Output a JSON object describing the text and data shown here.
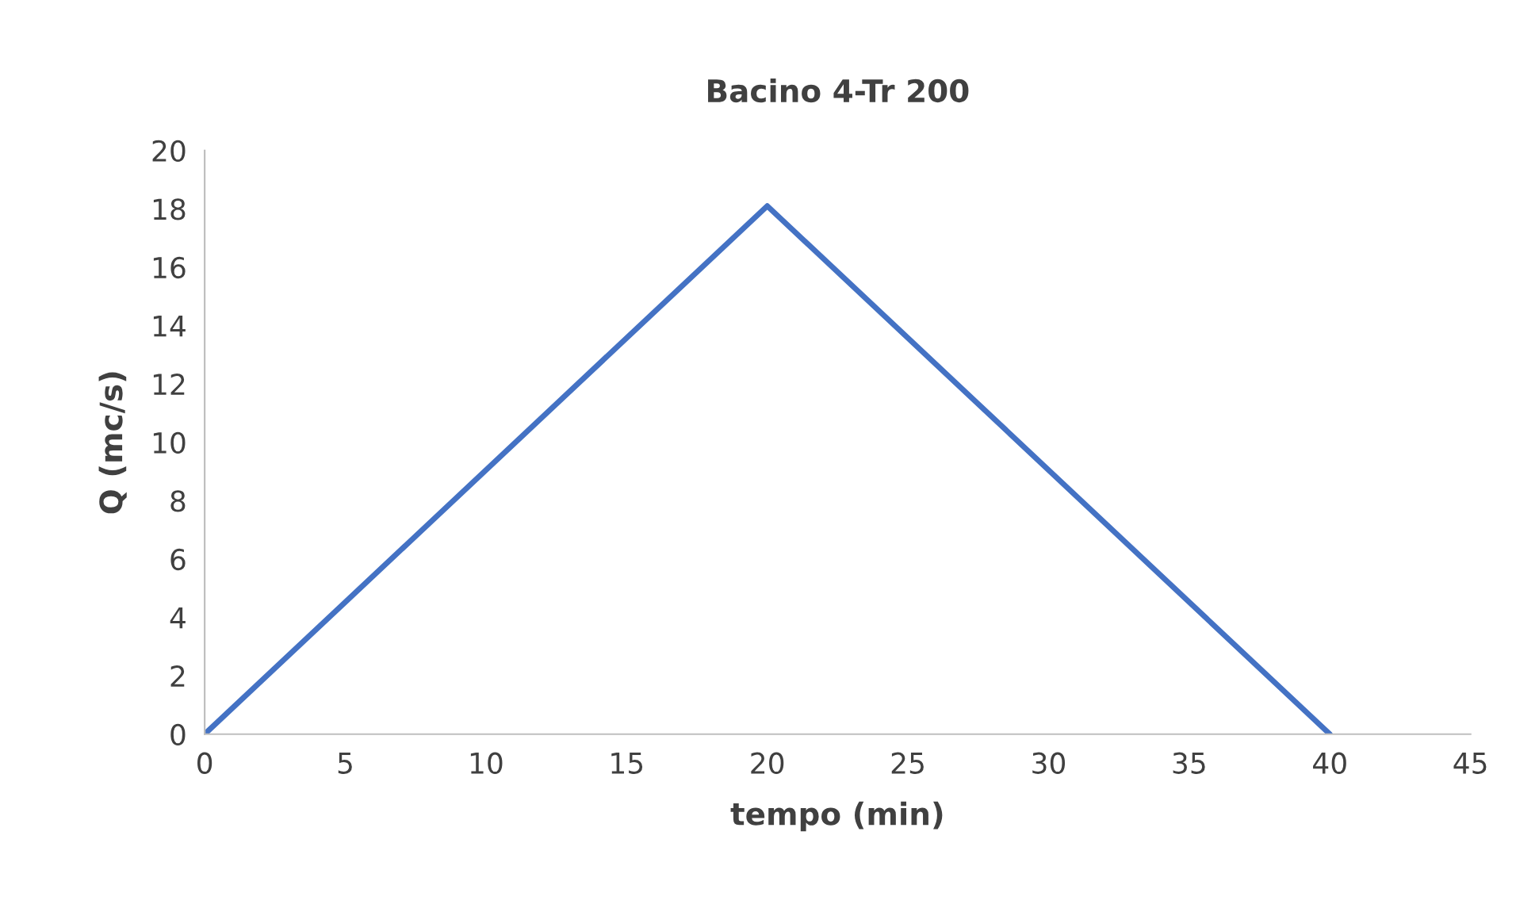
{
  "chart_data": {
    "type": "line",
    "title": "Bacino 4-Tr 200",
    "xlabel": "tempo (min)",
    "ylabel": "Q (mc/s)",
    "x": [
      0,
      20,
      40
    ],
    "series": [
      {
        "color": "#4472c4",
        "values": [
          0,
          18.1,
          0
        ]
      }
    ],
    "xlim": [
      0,
      45
    ],
    "xticks": [
      0,
      5,
      10,
      15,
      20,
      25,
      30,
      35,
      40,
      45
    ],
    "ylim": [
      0,
      20
    ],
    "yticks": [
      0,
      2,
      4,
      6,
      8,
      10,
      12,
      14,
      16,
      18,
      20
    ],
    "grid": false,
    "marker": "none",
    "line_style": "solid"
  }
}
